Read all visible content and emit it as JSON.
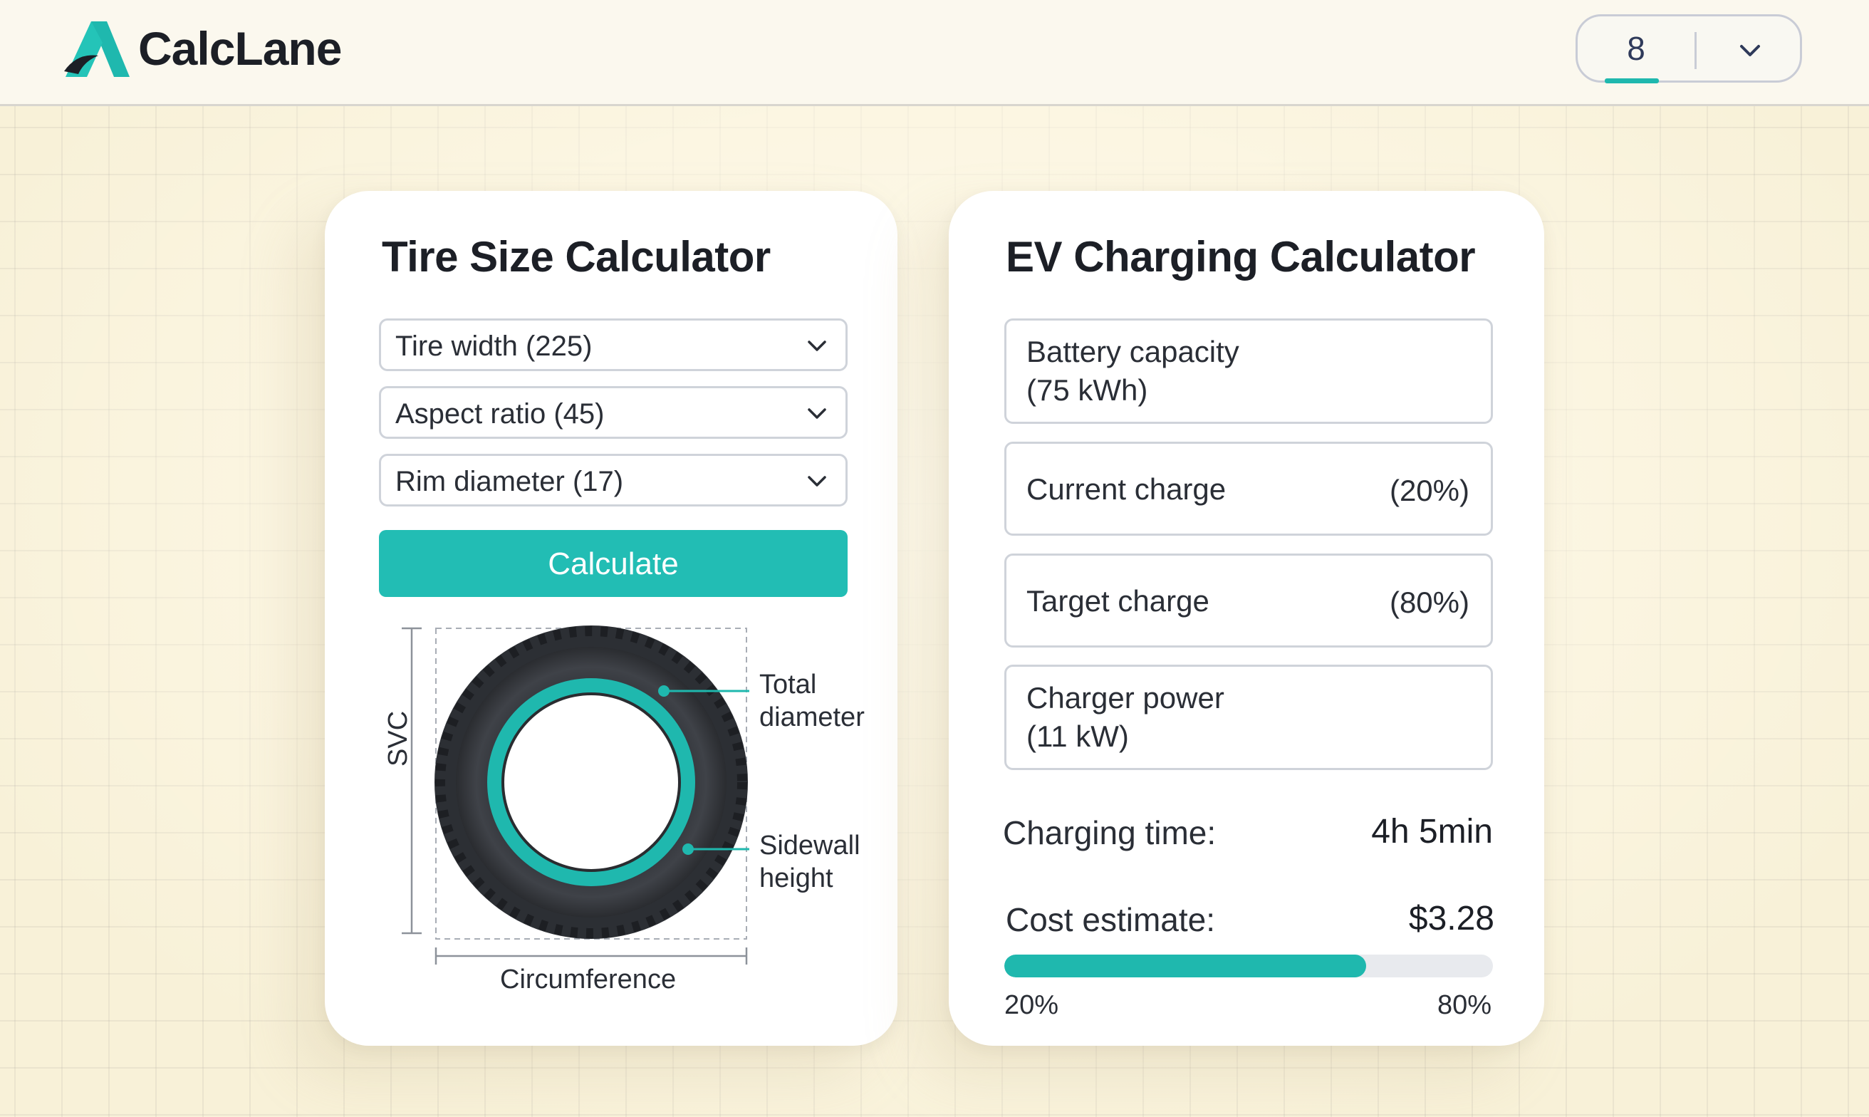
{
  "header": {
    "brand": "CalcLane",
    "page_selector": {
      "value": "8"
    }
  },
  "tire_calculator": {
    "title": "Tire Size Calculator",
    "fields": [
      {
        "label": "Tire width (225)"
      },
      {
        "label": "Aspect ratio (45)"
      },
      {
        "label": "Rim diameter (17)"
      }
    ],
    "calculate_label": "Calculate",
    "diagram": {
      "vertical_label": "SVC",
      "total_diameter_line1": "Total",
      "total_diameter_line2": "diameter",
      "sidewall_line1": "Sidewall",
      "sidewall_line2": "height",
      "circumference_label": "Circumference"
    }
  },
  "ev_calculator": {
    "title": "EV Charging Calculator",
    "battery_capacity": {
      "line1": "Battery capacity",
      "line2": "(75 kWh)"
    },
    "current_charge": {
      "label": "Current charge",
      "value": "(20%)"
    },
    "target_charge": {
      "label": "Target charge",
      "value": "(80%)"
    },
    "charger_power": {
      "line1": "Charger power",
      "line2": "(11 kW)"
    },
    "charging_time": {
      "label": "Charging time:",
      "value": "4h 5min"
    },
    "cost_estimate": {
      "label": "Cost estimate:",
      "value": "$3.28"
    },
    "progress": {
      "fill_fraction": 0.74,
      "start_label": "20%",
      "end_label": "80%"
    }
  },
  "colors": {
    "accent": "#1fb8ae",
    "button": "#22bdb4",
    "tire": "#3a3d42",
    "background": "#f8f1d8"
  },
  "icons": {
    "logo": "calclane-logo-icon",
    "dropdown": "chevron-down-icon"
  }
}
